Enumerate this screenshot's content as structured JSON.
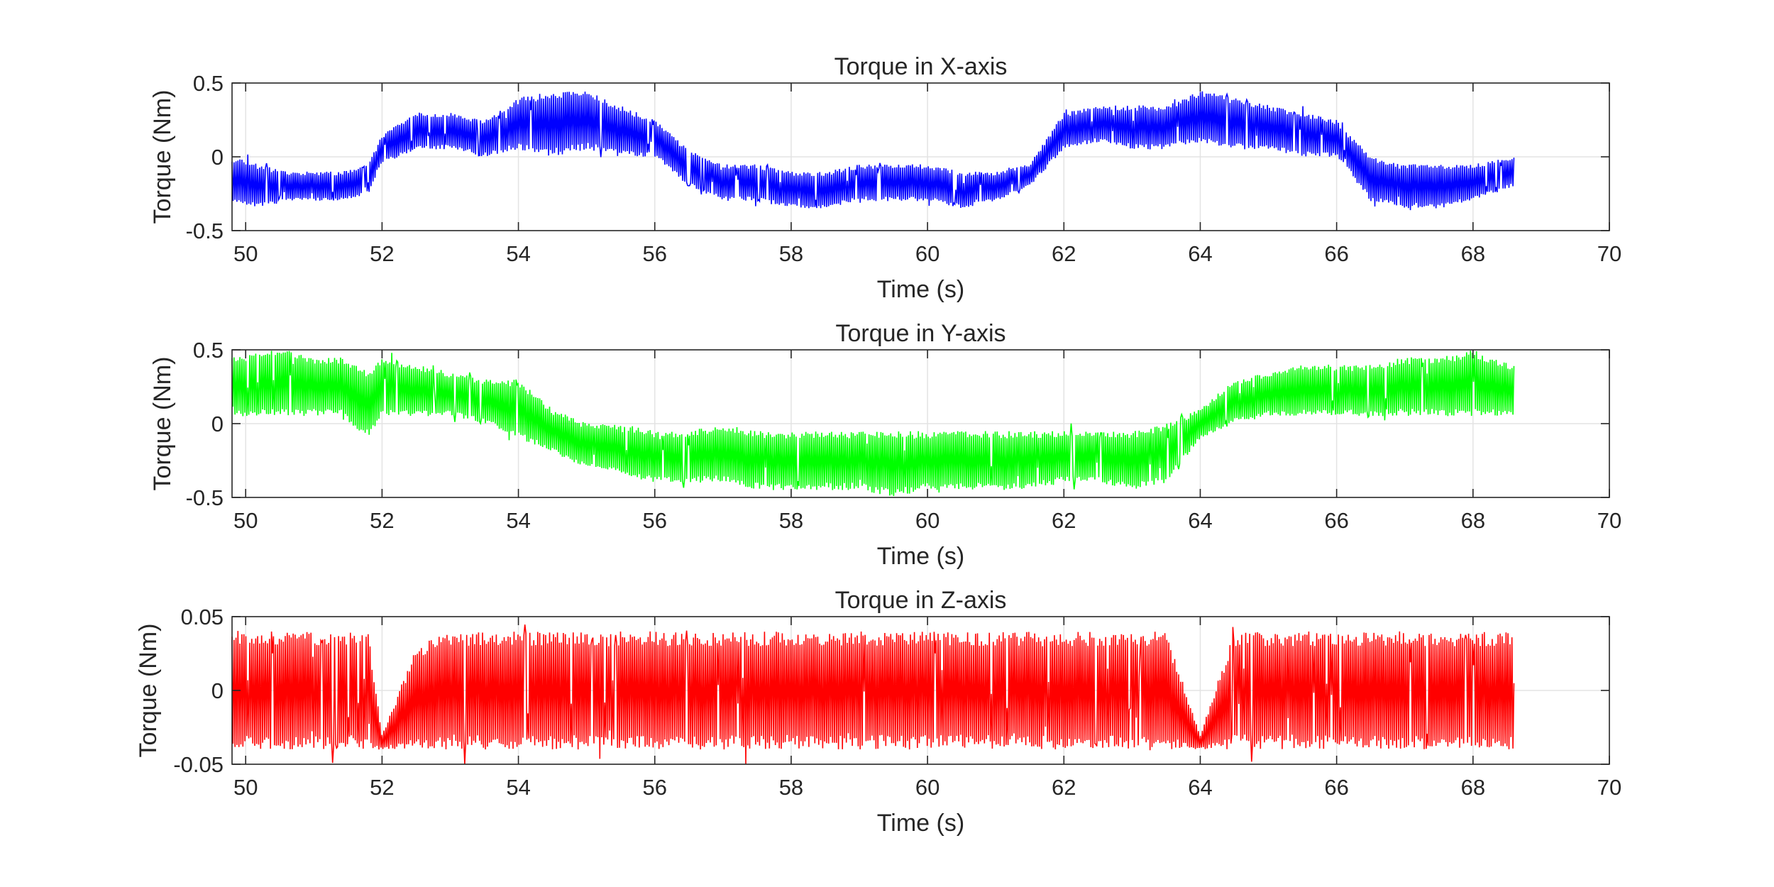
{
  "chart_data": [
    {
      "type": "line",
      "title": "Torque in X-axis",
      "xlabel": "Time (s)",
      "ylabel": "Torque (Nm)",
      "xlim": [
        49.8,
        70
      ],
      "ylim": [
        -0.5,
        0.5
      ],
      "xticks": [
        50,
        52,
        54,
        56,
        58,
        60,
        62,
        64,
        66,
        68,
        70
      ],
      "yticks": [
        -0.5,
        0,
        0.5
      ],
      "xtick_labels": [
        "50",
        "52",
        "54",
        "56",
        "58",
        "60",
        "62",
        "64",
        "66",
        "68",
        "70"
      ],
      "ytick_labels": [
        "-0.5",
        "0",
        "0.5"
      ],
      "grid": true,
      "color": "#0000FF",
      "series": [
        {
          "x": [
            49.8,
            50.2,
            50.6,
            51.0,
            51.4,
            51.8,
            52.0,
            52.5,
            53.0,
            53.5,
            54.0,
            54.5,
            55.0,
            55.5,
            56.0,
            56.5,
            57.0,
            57.5,
            58.0,
            58.5,
            59.0,
            59.5,
            60.0,
            60.5,
            61.0,
            61.5,
            62.0,
            62.5,
            63.0,
            63.5,
            64.0,
            64.5,
            65.0,
            65.5,
            66.0,
            66.5,
            67.0,
            67.5,
            68.0,
            68.6
          ],
          "upper": [
            0.0,
            -0.05,
            -0.1,
            -0.1,
            -0.1,
            -0.05,
            0.15,
            0.3,
            0.3,
            0.25,
            0.4,
            0.45,
            0.45,
            0.35,
            0.25,
            0.05,
            -0.05,
            -0.05,
            -0.1,
            -0.1,
            -0.05,
            -0.05,
            -0.05,
            -0.1,
            -0.1,
            -0.05,
            0.3,
            0.35,
            0.35,
            0.35,
            0.45,
            0.4,
            0.35,
            0.3,
            0.25,
            0.0,
            -0.05,
            -0.05,
            -0.05,
            0.0
          ],
          "lower": [
            -0.3,
            -0.35,
            -0.3,
            -0.3,
            -0.3,
            -0.25,
            -0.05,
            0.05,
            0.05,
            0.0,
            0.05,
            0.0,
            0.05,
            0.0,
            0.0,
            -0.2,
            -0.3,
            -0.3,
            -0.35,
            -0.35,
            -0.3,
            -0.3,
            -0.3,
            -0.35,
            -0.3,
            -0.2,
            0.05,
            0.1,
            0.05,
            0.05,
            0.1,
            0.05,
            0.05,
            0.0,
            0.0,
            -0.3,
            -0.35,
            -0.35,
            -0.3,
            -0.2
          ]
        }
      ]
    },
    {
      "type": "line",
      "title": "Torque in Y-axis",
      "xlabel": "Time (s)",
      "ylabel": "Torque (Nm)",
      "xlim": [
        49.8,
        70
      ],
      "ylim": [
        -0.5,
        0.5
      ],
      "xticks": [
        50,
        52,
        54,
        56,
        58,
        60,
        62,
        64,
        66,
        68,
        70
      ],
      "yticks": [
        -0.5,
        0,
        0.5
      ],
      "xtick_labels": [
        "50",
        "52",
        "54",
        "56",
        "58",
        "60",
        "62",
        "64",
        "66",
        "68",
        "70"
      ],
      "ytick_labels": [
        "-0.5",
        "0",
        "0.5"
      ],
      "grid": true,
      "color": "#00FF00",
      "series": [
        {
          "x": [
            49.8,
            50.2,
            50.6,
            51.0,
            51.4,
            51.8,
            52.0,
            52.5,
            53.0,
            53.5,
            54.0,
            54.5,
            55.0,
            55.5,
            56.0,
            56.5,
            57.0,
            57.5,
            58.0,
            58.5,
            59.0,
            59.5,
            60.0,
            60.5,
            61.0,
            61.5,
            62.0,
            62.5,
            63.0,
            63.5,
            64.0,
            64.5,
            65.0,
            65.5,
            66.0,
            66.5,
            67.0,
            67.5,
            68.0,
            68.6
          ],
          "upper": [
            0.45,
            0.5,
            0.5,
            0.45,
            0.45,
            0.35,
            0.45,
            0.4,
            0.35,
            0.3,
            0.3,
            0.1,
            0.0,
            0.0,
            -0.05,
            -0.05,
            0.0,
            -0.05,
            -0.05,
            -0.05,
            -0.05,
            -0.05,
            -0.05,
            -0.05,
            -0.05,
            -0.05,
            -0.05,
            -0.05,
            -0.05,
            0.0,
            0.1,
            0.3,
            0.35,
            0.4,
            0.4,
            0.4,
            0.45,
            0.45,
            0.5,
            0.4
          ],
          "lower": [
            0.05,
            0.05,
            0.05,
            0.05,
            0.05,
            -0.1,
            0.05,
            0.05,
            0.05,
            0.0,
            -0.1,
            -0.2,
            -0.3,
            -0.35,
            -0.4,
            -0.4,
            -0.4,
            -0.45,
            -0.45,
            -0.45,
            -0.45,
            -0.5,
            -0.45,
            -0.45,
            -0.45,
            -0.45,
            -0.4,
            -0.4,
            -0.45,
            -0.4,
            -0.1,
            0.0,
            0.05,
            0.05,
            0.05,
            0.05,
            0.05,
            0.05,
            0.05,
            0.05
          ]
        }
      ]
    },
    {
      "type": "line",
      "title": "Torque in Z-axis",
      "xlabel": "Time (s)",
      "ylabel": "Torque (Nm)",
      "xlim": [
        49.8,
        70
      ],
      "ylim": [
        -0.05,
        0.05
      ],
      "xticks": [
        50,
        52,
        54,
        56,
        58,
        60,
        62,
        64,
        66,
        68,
        70
      ],
      "yticks": [
        -0.05,
        0,
        0.05
      ],
      "xtick_labels": [
        "50",
        "52",
        "54",
        "56",
        "58",
        "60",
        "62",
        "64",
        "66",
        "68",
        "70"
      ],
      "ytick_labels": [
        "-0.05",
        "0",
        "0.05"
      ],
      "grid": true,
      "color": "#FF0000",
      "series": [
        {
          "x": [
            49.8,
            50.2,
            50.6,
            51.0,
            51.4,
            51.8,
            52.0,
            52.5,
            53.0,
            53.5,
            54.0,
            54.5,
            55.0,
            55.5,
            56.0,
            56.5,
            57.0,
            57.5,
            58.0,
            58.5,
            59.0,
            59.5,
            60.0,
            60.5,
            61.0,
            61.5,
            62.0,
            62.5,
            63.0,
            63.5,
            64.0,
            64.5,
            65.0,
            65.5,
            66.0,
            66.5,
            67.0,
            67.5,
            68.0,
            68.6
          ],
          "upper": [
            0.04,
            0.04,
            0.04,
            0.04,
            0.04,
            0.04,
            -0.03,
            0.03,
            0.04,
            0.04,
            0.04,
            0.04,
            0.04,
            0.04,
            0.04,
            0.04,
            0.04,
            0.04,
            0.04,
            0.04,
            0.04,
            0.04,
            0.04,
            0.04,
            0.04,
            0.04,
            0.04,
            0.04,
            0.04,
            0.04,
            -0.03,
            0.04,
            0.04,
            0.04,
            0.04,
            0.04,
            0.04,
            0.04,
            0.04,
            0.04
          ],
          "lower": [
            -0.04,
            -0.04,
            -0.04,
            -0.04,
            -0.04,
            -0.04,
            -0.04,
            -0.04,
            -0.04,
            -0.04,
            -0.04,
            -0.04,
            -0.04,
            -0.04,
            -0.04,
            -0.04,
            -0.04,
            -0.04,
            -0.04,
            -0.04,
            -0.04,
            -0.04,
            -0.04,
            -0.04,
            -0.04,
            -0.04,
            -0.04,
            -0.04,
            -0.04,
            -0.04,
            -0.04,
            -0.04,
            -0.04,
            -0.04,
            -0.04,
            -0.04,
            -0.04,
            -0.04,
            -0.04,
            -0.04
          ]
        }
      ]
    }
  ]
}
